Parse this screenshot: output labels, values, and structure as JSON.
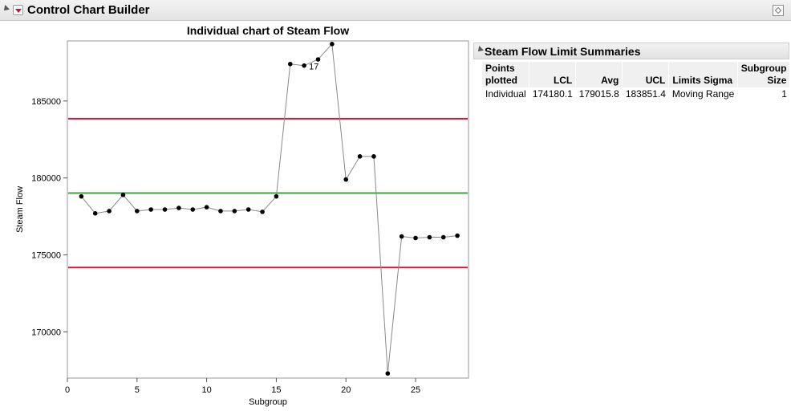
{
  "header": {
    "title": "Control Chart Builder",
    "pin_icon": "pin-icon",
    "menu_icon": "red-triangle-menu-icon"
  },
  "chart_data": {
    "type": "line",
    "title": "Individual chart of Steam Flow",
    "xlabel": "Subgroup",
    "ylabel": "Steam Flow",
    "xlim": [
      0,
      28.8
    ],
    "ylim": [
      167000,
      188900
    ],
    "xticks": [
      0,
      5,
      10,
      15,
      20,
      25
    ],
    "yticks": [
      170000,
      175000,
      180000,
      185000
    ],
    "x": [
      1,
      2,
      3,
      4,
      5,
      6,
      7,
      8,
      9,
      10,
      11,
      12,
      13,
      14,
      15,
      16,
      17,
      18,
      19,
      20,
      21,
      22,
      23,
      24,
      25,
      26,
      27,
      28
    ],
    "series": [
      {
        "values": [
          178800,
          177700,
          177850,
          178900,
          177850,
          177950,
          177950,
          178050,
          177950,
          178100,
          177850,
          177850,
          177950,
          177800,
          178800,
          187400,
          187300,
          187700,
          188700,
          179900,
          181400,
          181400,
          167300,
          176200,
          176100,
          176150,
          176150,
          176250
        ],
        "color": "#000000"
      }
    ],
    "lines": {
      "ucl": {
        "value": 183851.4,
        "color": "#cc1d3e"
      },
      "avg": {
        "value": 179015.8,
        "color": "#3fa33f"
      },
      "lcl": {
        "value": 174180.1,
        "color": "#cc1d3e"
      }
    },
    "annotations": [
      {
        "x": 17,
        "label": "17"
      }
    ],
    "grid": false,
    "legend": "none"
  },
  "limit_summaries": {
    "title": "Steam Flow Limit Summaries",
    "columns": [
      {
        "line1": "Points",
        "line2": "plotted",
        "align": "left"
      },
      {
        "line1": "",
        "line2": "LCL",
        "align": "right"
      },
      {
        "line1": "",
        "line2": "Avg",
        "align": "right"
      },
      {
        "line1": "",
        "line2": "UCL",
        "align": "right"
      },
      {
        "line1": "",
        "line2": "Limits Sigma",
        "align": "left"
      },
      {
        "line1": "Subgroup",
        "line2": "Size",
        "align": "right"
      }
    ],
    "rows": [
      [
        "Individual",
        "174180.1",
        "179015.8",
        "183851.4",
        "Moving Range",
        "1"
      ]
    ]
  }
}
